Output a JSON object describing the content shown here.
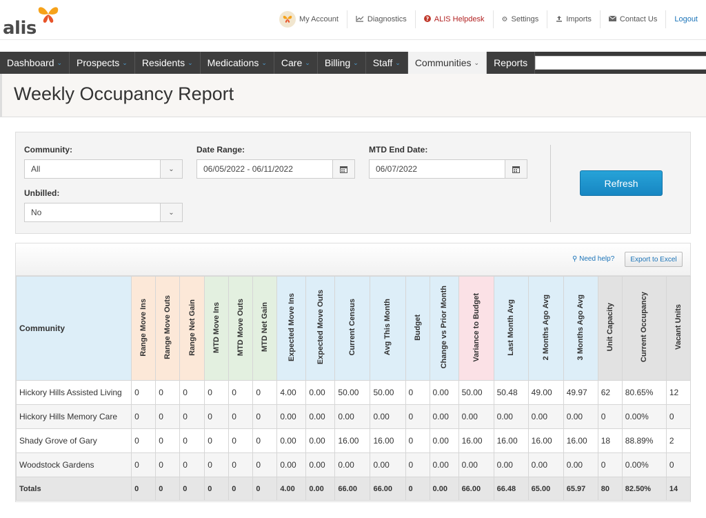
{
  "brand": {
    "logo_text": "alis"
  },
  "toplinks": [
    {
      "label": "My Account",
      "icon": "account-avatar"
    },
    {
      "label": "Diagnostics",
      "icon": "line-chart-icon"
    },
    {
      "label": "ALIS Helpdesk",
      "icon": "question-circle-icon"
    },
    {
      "label": "Settings",
      "icon": "gear-icon"
    },
    {
      "label": "Imports",
      "icon": "upload-icon"
    },
    {
      "label": "Contact Us",
      "icon": "envelope-icon"
    },
    {
      "label": "Logout",
      "icon": ""
    }
  ],
  "nav": [
    {
      "label": "Dashboard",
      "has_menu": true
    },
    {
      "label": "Prospects",
      "has_menu": true
    },
    {
      "label": "Residents",
      "has_menu": true
    },
    {
      "label": "Medications",
      "has_menu": true
    },
    {
      "label": "Care",
      "has_menu": true
    },
    {
      "label": "Billing",
      "has_menu": true
    },
    {
      "label": "Staff",
      "has_menu": true
    },
    {
      "label": "Communities",
      "has_menu": true,
      "active": true
    },
    {
      "label": "Reports",
      "has_menu": false
    }
  ],
  "search": {
    "value": "",
    "placeholder": ""
  },
  "page": {
    "title": "Weekly Occupancy Report"
  },
  "filters": {
    "community_label": "Community:",
    "community_value": "All",
    "date_range_label": "Date Range:",
    "date_range_value": "06/05/2022 - 06/11/2022",
    "mtd_end_label": "MTD End Date:",
    "mtd_end_value": "06/07/2022",
    "unbilled_label": "Unbilled:",
    "unbilled_value": "No",
    "refresh_label": "Refresh"
  },
  "toolbar": {
    "need_help": "Need help?",
    "export": "Export to Excel"
  },
  "table": {
    "columns": [
      {
        "label": "Community",
        "group": "blue"
      },
      {
        "label": "Range Move Ins",
        "group": "peach"
      },
      {
        "label": "Range Move Outs",
        "group": "peach"
      },
      {
        "label": "Range Net Gain",
        "group": "peach"
      },
      {
        "label": "MTD Move Ins",
        "group": "green"
      },
      {
        "label": "MTD Move Outs",
        "group": "green"
      },
      {
        "label": "MTD Net Gain",
        "group": "green"
      },
      {
        "label": "Expected Move Ins",
        "group": "blue"
      },
      {
        "label": "Expected Move Outs",
        "group": "blue"
      },
      {
        "label": "Current Census",
        "group": "blue"
      },
      {
        "label": "Avg This Month",
        "group": "blue"
      },
      {
        "label": "Budget",
        "group": "blue"
      },
      {
        "label": "Change vs Prior Month",
        "group": "blue"
      },
      {
        "label": "Variance to Budget",
        "group": "pink"
      },
      {
        "label": "Last Month Avg",
        "group": "blue"
      },
      {
        "label": "2 Months Ago Avg",
        "group": "blue"
      },
      {
        "label": "3 Months Ago Avg",
        "group": "blue"
      },
      {
        "label": "Unit Capacity",
        "group": "gray"
      },
      {
        "label": "Current Occupancy",
        "group": "gray"
      },
      {
        "label": "Vacant Units",
        "group": "gray"
      }
    ],
    "rows": [
      [
        "Hickory Hills Assisted Living",
        "0",
        "0",
        "0",
        "0",
        "0",
        "0",
        "4.00",
        "0.00",
        "50.00",
        "50.00",
        "0",
        "0.00",
        "50.00",
        "50.48",
        "49.00",
        "49.97",
        "62",
        "80.65%",
        "12"
      ],
      [
        "Hickory Hills Memory Care",
        "0",
        "0",
        "0",
        "0",
        "0",
        "0",
        "0.00",
        "0.00",
        "0.00",
        "0.00",
        "0",
        "0.00",
        "0.00",
        "0.00",
        "0.00",
        "0.00",
        "0",
        "0.00%",
        "0"
      ],
      [
        "Shady Grove of Gary",
        "0",
        "0",
        "0",
        "0",
        "0",
        "0",
        "0.00",
        "0.00",
        "16.00",
        "16.00",
        "0",
        "0.00",
        "16.00",
        "16.00",
        "16.00",
        "16.00",
        "18",
        "88.89%",
        "2"
      ],
      [
        "Woodstock Gardens",
        "0",
        "0",
        "0",
        "0",
        "0",
        "0",
        "0.00",
        "0.00",
        "0.00",
        "0.00",
        "0",
        "0.00",
        "0.00",
        "0.00",
        "0.00",
        "0.00",
        "0",
        "0.00%",
        "0"
      ]
    ],
    "totals": [
      "Totals",
      "0",
      "0",
      "0",
      "0",
      "0",
      "0",
      "4.00",
      "0.00",
      "66.00",
      "66.00",
      "0",
      "0.00",
      "66.00",
      "66.48",
      "65.00",
      "65.97",
      "80",
      "82.50%",
      "14"
    ]
  }
}
